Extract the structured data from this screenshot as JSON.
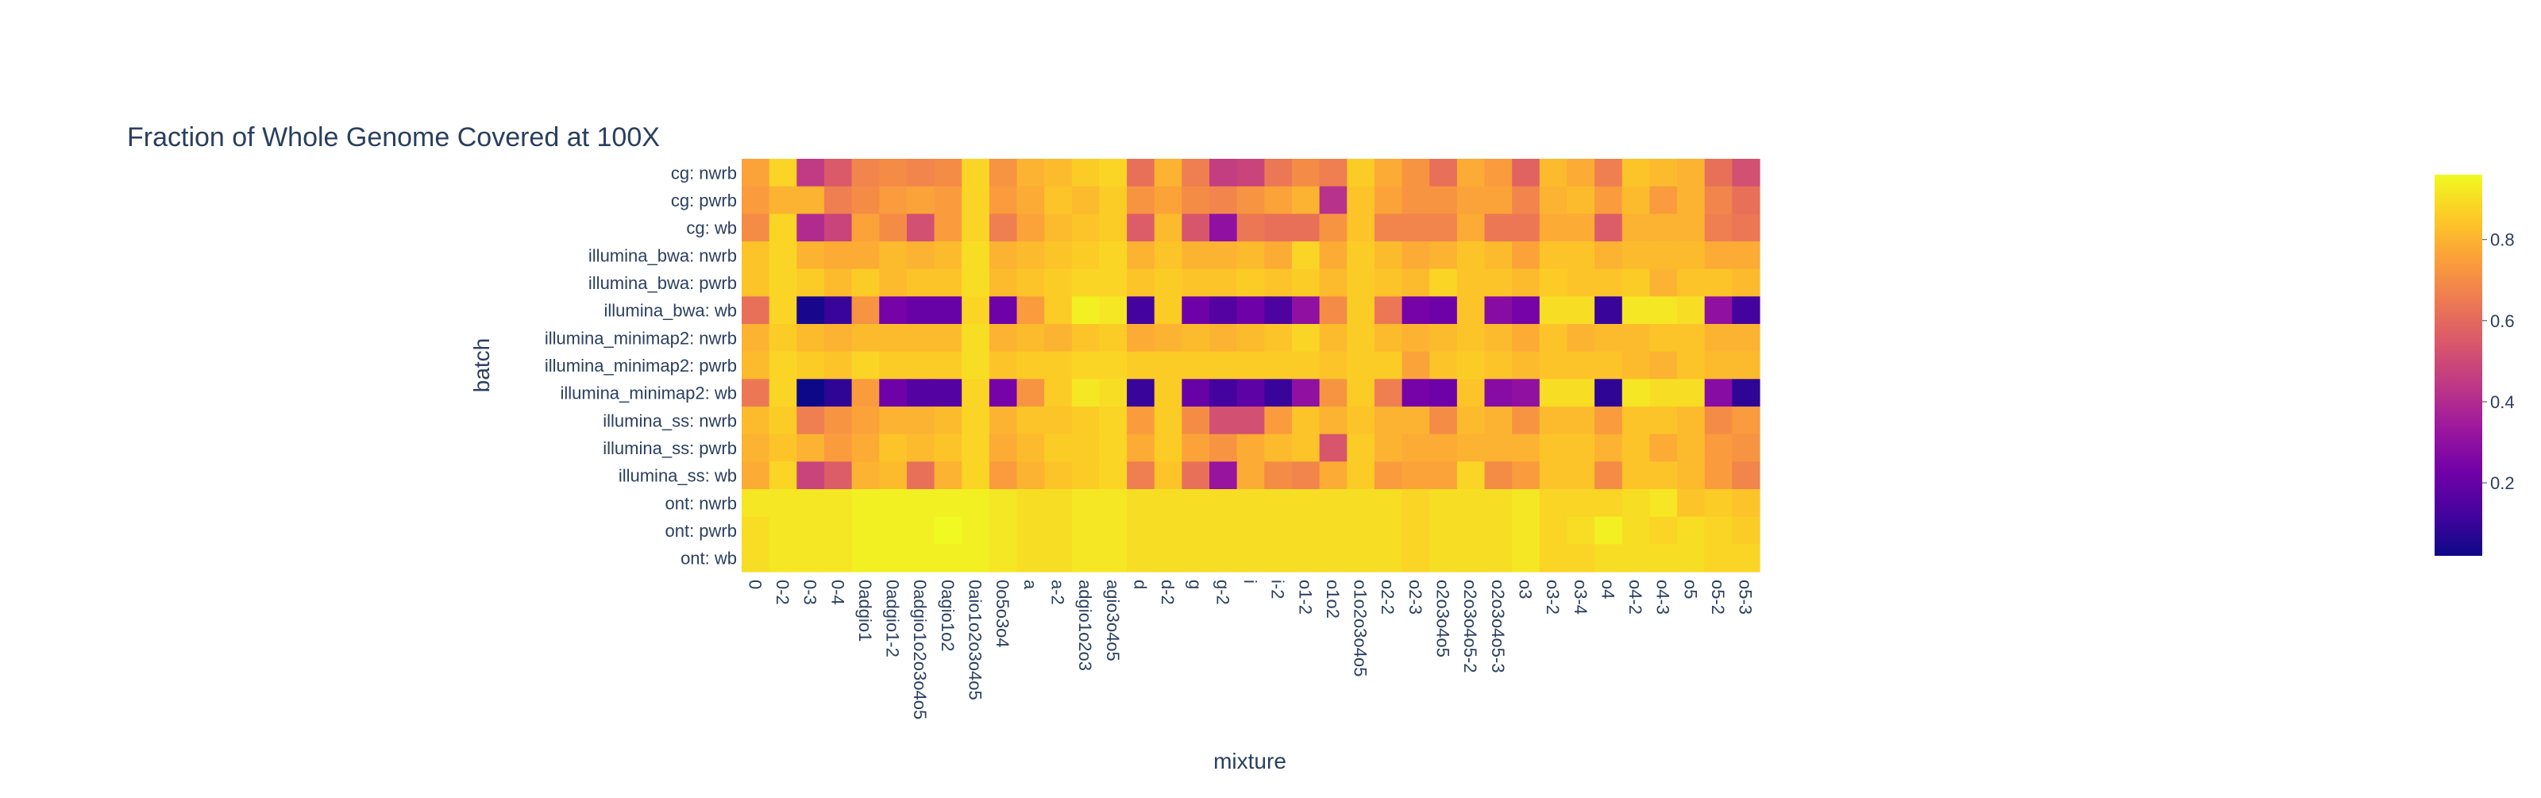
{
  "chart_data": {
    "type": "heatmap",
    "title": "Fraction of Whole Genome Covered at 100X",
    "xlabel": "mixture",
    "ylabel": "batch",
    "x": [
      "0",
      "0-2",
      "0-3",
      "0-4",
      "0adgio1",
      "0adgio1-2",
      "0adgio1o2o3o4o5",
      "0agio1o2",
      "0aio1o2o3o4o5",
      "0o5o3o4",
      "a",
      "a-2",
      "adgio1o2o3",
      "agio3o4o5",
      "d",
      "d-2",
      "g",
      "g-2",
      "i",
      "i-2",
      "o1-2",
      "o1o2",
      "o1o2o3o4o5",
      "o2-2",
      "o2-3",
      "o2o3o4o5",
      "o2o3o4o5-2",
      "o2o3o4o5-3",
      "o3",
      "o3-2",
      "o3-4",
      "o4",
      "o4-2",
      "o4-3",
      "o5",
      "o5-2",
      "o5-3"
    ],
    "y": [
      "cg: nwrb",
      "cg: pwrb",
      "cg: wb",
      "illumina_bwa: nwrb",
      "illumina_bwa: pwrb",
      "illumina_bwa: wb",
      "illumina_minimap2: nwrb",
      "illumina_minimap2: pwrb",
      "illumina_minimap2: wb",
      "illumina_ss: nwrb",
      "illumina_ss: pwrb",
      "illumina_ss: wb",
      "ont: nwrb",
      "ont: pwrb",
      "ont: wb"
    ],
    "colorscale": [
      "#0d0887",
      "#46039f",
      "#7201a8",
      "#9c179e",
      "#bd3786",
      "#d8576b",
      "#ed7953",
      "#fb9f3a",
      "#fdca26",
      "#f0f921"
    ],
    "zmin": 0.02,
    "zmax": 0.96,
    "colorbar_ticks": [
      0.2,
      0.4,
      0.6,
      0.8
    ],
    "z": [
      [
        0.76,
        0.88,
        0.45,
        0.55,
        0.68,
        0.7,
        0.68,
        0.7,
        0.88,
        0.72,
        0.8,
        0.82,
        0.86,
        0.88,
        0.62,
        0.8,
        0.66,
        0.46,
        0.48,
        0.64,
        0.7,
        0.66,
        0.86,
        0.78,
        0.72,
        0.62,
        0.78,
        0.74,
        0.58,
        0.82,
        0.78,
        0.66,
        0.84,
        0.82,
        0.8,
        0.62,
        0.52
      ],
      [
        0.74,
        0.8,
        0.8,
        0.66,
        0.7,
        0.74,
        0.76,
        0.74,
        0.88,
        0.74,
        0.78,
        0.84,
        0.82,
        0.86,
        0.72,
        0.76,
        0.7,
        0.68,
        0.72,
        0.76,
        0.8,
        0.42,
        0.84,
        0.76,
        0.72,
        0.72,
        0.76,
        0.76,
        0.68,
        0.8,
        0.82,
        0.74,
        0.82,
        0.74,
        0.8,
        0.68,
        0.62
      ],
      [
        0.7,
        0.88,
        0.4,
        0.48,
        0.76,
        0.7,
        0.52,
        0.74,
        0.88,
        0.66,
        0.76,
        0.82,
        0.84,
        0.86,
        0.56,
        0.82,
        0.54,
        0.3,
        0.64,
        0.62,
        0.62,
        0.72,
        0.84,
        0.68,
        0.68,
        0.68,
        0.78,
        0.64,
        0.64,
        0.78,
        0.78,
        0.56,
        0.8,
        0.8,
        0.8,
        0.66,
        0.64
      ],
      [
        0.84,
        0.88,
        0.8,
        0.78,
        0.78,
        0.82,
        0.8,
        0.82,
        0.9,
        0.8,
        0.82,
        0.84,
        0.86,
        0.88,
        0.8,
        0.84,
        0.8,
        0.8,
        0.82,
        0.78,
        0.88,
        0.78,
        0.86,
        0.82,
        0.78,
        0.8,
        0.84,
        0.82,
        0.76,
        0.84,
        0.84,
        0.8,
        0.82,
        0.82,
        0.82,
        0.78,
        0.78
      ],
      [
        0.84,
        0.88,
        0.86,
        0.82,
        0.86,
        0.82,
        0.84,
        0.84,
        0.9,
        0.82,
        0.84,
        0.86,
        0.88,
        0.88,
        0.84,
        0.86,
        0.84,
        0.84,
        0.86,
        0.84,
        0.86,
        0.82,
        0.86,
        0.84,
        0.82,
        0.88,
        0.84,
        0.84,
        0.82,
        0.86,
        0.84,
        0.84,
        0.86,
        0.8,
        0.84,
        0.84,
        0.82
      ],
      [
        0.62,
        0.88,
        0.04,
        0.1,
        0.72,
        0.24,
        0.2,
        0.2,
        0.88,
        0.22,
        0.74,
        0.86,
        0.94,
        0.92,
        0.12,
        0.86,
        0.22,
        0.16,
        0.22,
        0.14,
        0.3,
        0.7,
        0.86,
        0.64,
        0.24,
        0.22,
        0.84,
        0.28,
        0.24,
        0.9,
        0.9,
        0.1,
        0.92,
        0.92,
        0.9,
        0.3,
        0.12
      ],
      [
        0.8,
        0.86,
        0.82,
        0.8,
        0.82,
        0.82,
        0.82,
        0.82,
        0.9,
        0.8,
        0.82,
        0.8,
        0.84,
        0.86,
        0.78,
        0.8,
        0.82,
        0.8,
        0.82,
        0.84,
        0.88,
        0.82,
        0.86,
        0.82,
        0.8,
        0.82,
        0.84,
        0.82,
        0.78,
        0.84,
        0.8,
        0.82,
        0.82,
        0.84,
        0.84,
        0.8,
        0.8
      ],
      [
        0.82,
        0.88,
        0.86,
        0.84,
        0.88,
        0.86,
        0.86,
        0.86,
        0.9,
        0.84,
        0.86,
        0.86,
        0.88,
        0.88,
        0.86,
        0.86,
        0.86,
        0.86,
        0.86,
        0.86,
        0.86,
        0.84,
        0.86,
        0.86,
        0.76,
        0.84,
        0.86,
        0.84,
        0.82,
        0.84,
        0.84,
        0.84,
        0.82,
        0.8,
        0.84,
        0.82,
        0.82
      ],
      [
        0.64,
        0.88,
        0.02,
        0.08,
        0.74,
        0.22,
        0.16,
        0.16,
        0.88,
        0.24,
        0.72,
        0.86,
        0.92,
        0.9,
        0.1,
        0.86,
        0.2,
        0.12,
        0.18,
        0.1,
        0.3,
        0.72,
        0.86,
        0.66,
        0.24,
        0.22,
        0.84,
        0.28,
        0.3,
        0.9,
        0.9,
        0.08,
        0.92,
        0.9,
        0.9,
        0.28,
        0.08
      ],
      [
        0.82,
        0.86,
        0.66,
        0.72,
        0.76,
        0.8,
        0.8,
        0.82,
        0.88,
        0.8,
        0.84,
        0.84,
        0.86,
        0.88,
        0.74,
        0.86,
        0.7,
        0.52,
        0.52,
        0.74,
        0.84,
        0.8,
        0.84,
        0.8,
        0.8,
        0.7,
        0.82,
        0.8,
        0.72,
        0.82,
        0.82,
        0.74,
        0.84,
        0.84,
        0.82,
        0.7,
        0.74
      ],
      [
        0.8,
        0.84,
        0.8,
        0.74,
        0.78,
        0.84,
        0.82,
        0.84,
        0.88,
        0.78,
        0.82,
        0.86,
        0.86,
        0.88,
        0.78,
        0.86,
        0.76,
        0.72,
        0.78,
        0.82,
        0.84,
        0.54,
        0.86,
        0.8,
        0.78,
        0.78,
        0.8,
        0.8,
        0.8,
        0.84,
        0.84,
        0.8,
        0.84,
        0.78,
        0.82,
        0.74,
        0.72
      ],
      [
        0.78,
        0.88,
        0.48,
        0.56,
        0.8,
        0.82,
        0.62,
        0.8,
        0.88,
        0.74,
        0.8,
        0.84,
        0.86,
        0.88,
        0.66,
        0.84,
        0.62,
        0.32,
        0.78,
        0.7,
        0.68,
        0.78,
        0.86,
        0.74,
        0.76,
        0.76,
        0.88,
        0.7,
        0.74,
        0.84,
        0.84,
        0.7,
        0.84,
        0.84,
        0.82,
        0.74,
        0.68
      ],
      [
        0.92,
        0.92,
        0.92,
        0.92,
        0.94,
        0.94,
        0.94,
        0.94,
        0.94,
        0.92,
        0.9,
        0.9,
        0.92,
        0.92,
        0.9,
        0.9,
        0.9,
        0.9,
        0.9,
        0.9,
        0.9,
        0.9,
        0.9,
        0.9,
        0.88,
        0.9,
        0.9,
        0.9,
        0.92,
        0.88,
        0.88,
        0.88,
        0.9,
        0.92,
        0.84,
        0.86,
        0.84
      ],
      [
        0.9,
        0.92,
        0.92,
        0.92,
        0.94,
        0.94,
        0.94,
        0.96,
        0.94,
        0.92,
        0.9,
        0.9,
        0.92,
        0.92,
        0.9,
        0.9,
        0.9,
        0.9,
        0.9,
        0.9,
        0.9,
        0.9,
        0.9,
        0.9,
        0.88,
        0.9,
        0.9,
        0.9,
        0.92,
        0.88,
        0.9,
        0.94,
        0.9,
        0.88,
        0.9,
        0.88,
        0.86
      ],
      [
        0.9,
        0.92,
        0.92,
        0.92,
        0.94,
        0.94,
        0.94,
        0.94,
        0.94,
        0.92,
        0.9,
        0.9,
        0.92,
        0.92,
        0.9,
        0.9,
        0.9,
        0.9,
        0.9,
        0.9,
        0.9,
        0.9,
        0.9,
        0.9,
        0.88,
        0.9,
        0.9,
        0.9,
        0.92,
        0.88,
        0.88,
        0.9,
        0.9,
        0.9,
        0.9,
        0.88,
        0.88
      ]
    ]
  }
}
